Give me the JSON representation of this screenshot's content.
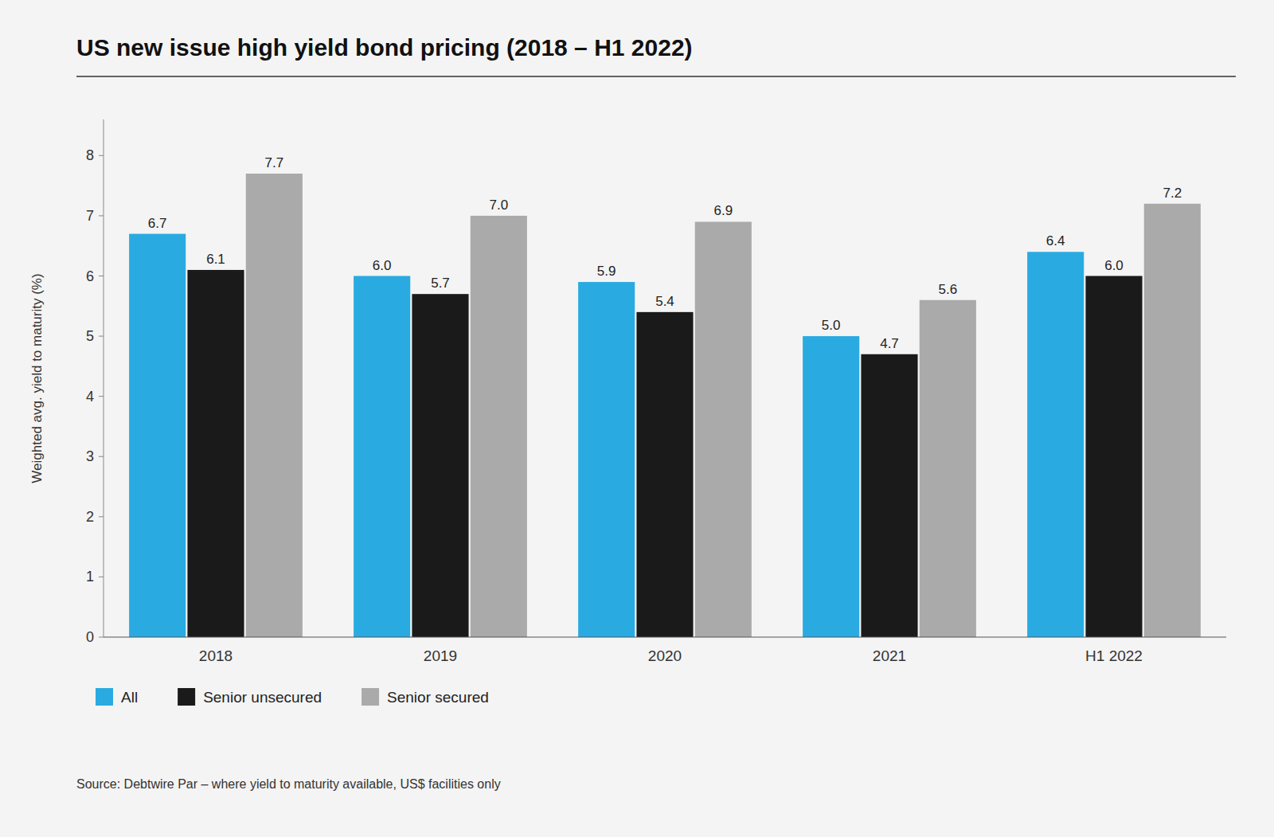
{
  "chart_data": {
    "type": "bar",
    "title": "US new issue high yield bond pricing (2018 – H1 2022)",
    "y_label": "Weighted avg. yield to maturity (%)",
    "categories": [
      "2018",
      "2019",
      "2020",
      "2021",
      "H1 2022"
    ],
    "series": [
      {
        "name": "All",
        "color": "#29ABE2",
        "values": [
          6.7,
          6.0,
          5.9,
          5.0,
          6.4
        ],
        "value_labels": [
          "6.7",
          "6.0",
          "5.9",
          "5.0",
          "6.4"
        ]
      },
      {
        "name": "Senior unsecured",
        "color": "#1a1a1a",
        "values": [
          6.1,
          5.7,
          5.4,
          4.7,
          6.0
        ],
        "value_labels": [
          "6.1",
          "5.7",
          "5.4",
          "4.7",
          "6.0"
        ]
      },
      {
        "name": "Senior secured",
        "color": "#aaaaaa",
        "values": [
          7.7,
          7.0,
          6.9,
          5.6,
          7.2
        ],
        "value_labels": [
          "7.7",
          "7.0",
          "6.9",
          "5.6",
          "7.2"
        ]
      }
    ],
    "ylim": [
      0,
      8.6
    ],
    "yticks": [
      0,
      1,
      2,
      3,
      4,
      5,
      6,
      7,
      8
    ],
    "grid": false,
    "data_labels": true,
    "legend": "bottom",
    "annotations": [
      "Source: Debtwire Par – where yield to maturity available, US$ facilities only"
    ]
  }
}
